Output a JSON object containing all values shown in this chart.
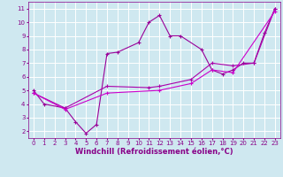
{
  "lines": [
    {
      "x": [
        0,
        1,
        3,
        4,
        5,
        6,
        7,
        8,
        10,
        11,
        12,
        13,
        14,
        16,
        17,
        18,
        19,
        20,
        21,
        22,
        23
      ],
      "y": [
        5.0,
        4.0,
        3.7,
        2.7,
        1.85,
        2.5,
        7.7,
        7.8,
        8.5,
        10.0,
        10.5,
        9.0,
        9.0,
        8.0,
        6.5,
        6.2,
        6.5,
        7.0,
        7.0,
        9.2,
        11.0
      ],
      "color": "#990099",
      "marker": "+"
    },
    {
      "x": [
        0,
        3,
        7,
        11,
        12,
        15,
        17,
        19,
        21,
        23
      ],
      "y": [
        4.8,
        3.7,
        5.3,
        5.2,
        5.3,
        5.8,
        7.0,
        6.8,
        7.0,
        11.0
      ],
      "color": "#aa00aa",
      "marker": "+"
    },
    {
      "x": [
        0,
        3,
        7,
        12,
        15,
        17,
        19,
        23
      ],
      "y": [
        4.8,
        3.6,
        4.8,
        5.0,
        5.5,
        6.5,
        6.3,
        10.8
      ],
      "color": "#cc00cc",
      "marker": "+"
    }
  ],
  "xlim": [
    -0.5,
    23.5
  ],
  "ylim": [
    1.5,
    11.5
  ],
  "xticks": [
    0,
    1,
    2,
    3,
    4,
    5,
    6,
    7,
    8,
    9,
    10,
    11,
    12,
    13,
    14,
    15,
    16,
    17,
    18,
    19,
    20,
    21,
    22,
    23
  ],
  "yticks": [
    2,
    3,
    4,
    5,
    6,
    7,
    8,
    9,
    10,
    11
  ],
  "xlabel": "Windchill (Refroidissement éolien,°C)",
  "bgcolor": "#cfe8f0",
  "grid_color": "#ffffff",
  "line_color": "#880088",
  "tick_fontsize": 5.0,
  "xlabel_fontsize": 6.0
}
